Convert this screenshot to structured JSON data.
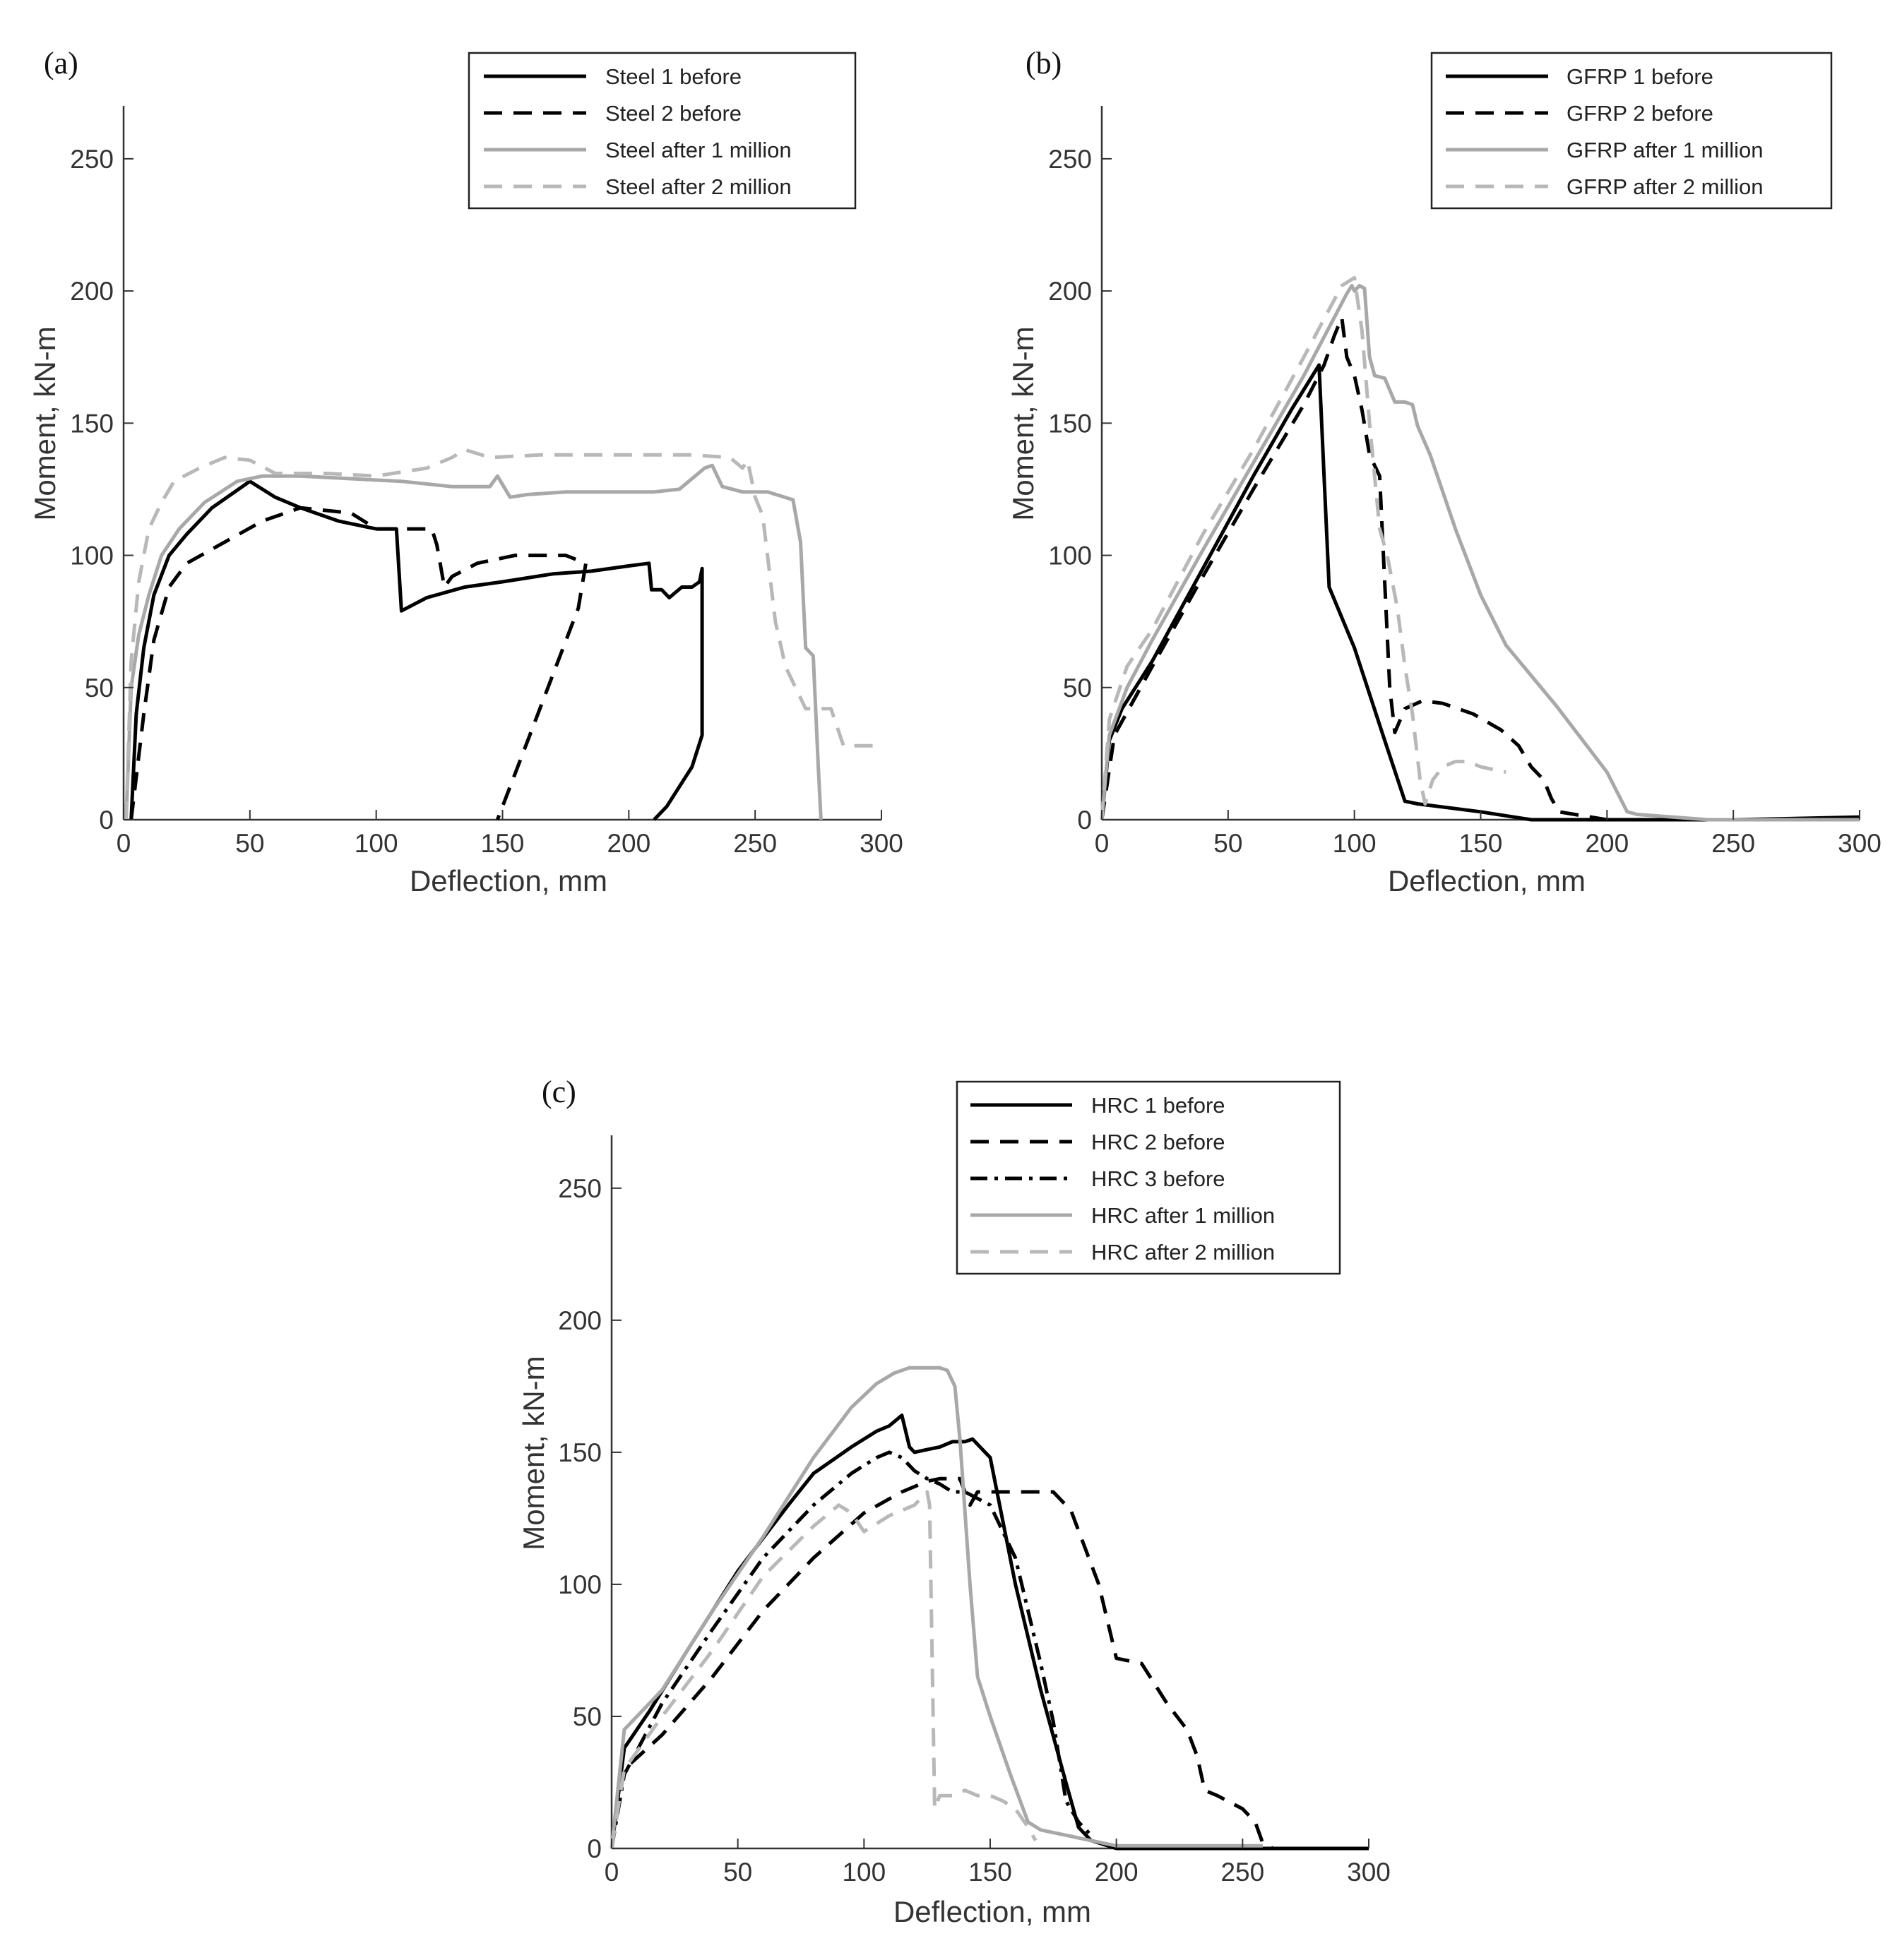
{
  "figure": {
    "panels": [
      "a",
      "b",
      "c"
    ]
  },
  "chart_data": [
    {
      "type": "line",
      "panel_label": "(a)",
      "xlabel": "Deflection, mm",
      "ylabel": "Moment, kN-m",
      "xlim": [
        0,
        300
      ],
      "ylim": [
        0,
        270
      ],
      "xticks": [
        0,
        50,
        100,
        150,
        200,
        250,
        300
      ],
      "yticks": [
        0,
        50,
        100,
        150,
        200,
        250
      ],
      "grid": false,
      "legend_position": "top-right",
      "series": [
        {
          "name": "Steel 1 before",
          "color": "#000000",
          "style": "solid",
          "x": [
            3,
            5,
            8,
            12,
            18,
            25,
            35,
            50,
            60,
            70,
            85,
            95,
            100,
            108,
            110,
            120,
            135,
            150,
            170,
            185,
            200,
            208,
            209,
            213,
            216,
            221,
            225,
            228,
            229,
            229,
            225,
            215,
            210
          ],
          "y": [
            0,
            40,
            65,
            85,
            100,
            108,
            118,
            128,
            122,
            118,
            113,
            111,
            110,
            110,
            79,
            84,
            88,
            90,
            93,
            94,
            96,
            97,
            87,
            87,
            84,
            88,
            88,
            90,
            95,
            32,
            20,
            5,
            0
          ]
        },
        {
          "name": "Steel 2 before",
          "color": "#000000",
          "style": "dashed",
          "x": [
            3,
            8,
            12,
            18,
            25,
            40,
            55,
            70,
            90,
            100,
            110,
            122,
            124,
            127,
            130,
            140,
            155,
            170,
            175,
            183,
            180,
            170,
            160,
            148
          ],
          "y": [
            0,
            40,
            68,
            88,
            97,
            105,
            113,
            118,
            116,
            110,
            110,
            110,
            104,
            88,
            92,
            97,
            100,
            100,
            100,
            97,
            80,
            55,
            30,
            0
          ]
        },
        {
          "name": "Steel after 1 million",
          "color": "#a8a8a8",
          "style": "solid",
          "x": [
            1,
            3,
            6,
            10,
            15,
            22,
            32,
            45,
            55,
            70,
            90,
            110,
            130,
            145,
            148,
            153,
            160,
            175,
            200,
            210,
            220,
            230,
            233,
            237,
            245,
            255,
            265,
            268,
            270,
            273,
            275,
            276,
            276
          ],
          "y": [
            0,
            50,
            70,
            85,
            100,
            110,
            120,
            128,
            130,
            130,
            129,
            128,
            126,
            126,
            130,
            122,
            123,
            124,
            124,
            124,
            125,
            133,
            134,
            126,
            124,
            124,
            121,
            105,
            65,
            62,
            20,
            1,
            0
          ]
        },
        {
          "name": "Steel after 2 million",
          "color": "#b8b8b8",
          "style": "dashed",
          "x": [
            1,
            3,
            6,
            10,
            15,
            20,
            30,
            40,
            50,
            60,
            80,
            100,
            120,
            130,
            135,
            145,
            165,
            200,
            225,
            240,
            245,
            247,
            250,
            253,
            258,
            262,
            265,
            270,
            280,
            285,
            290,
            300
          ],
          "y": [
            0,
            60,
            90,
            110,
            120,
            128,
            133,
            137,
            136,
            131,
            131,
            130,
            133,
            137,
            140,
            137,
            138,
            138,
            138,
            137,
            133,
            136,
            122,
            115,
            75,
            58,
            52,
            42,
            42,
            28,
            28,
            28
          ]
        }
      ]
    },
    {
      "type": "line",
      "panel_label": "(b)",
      "xlabel": "Deflection, mm",
      "ylabel": "Moment, kN-m",
      "xlim": [
        0,
        300
      ],
      "ylim": [
        0,
        270
      ],
      "xticks": [
        0,
        50,
        100,
        150,
        200,
        250,
        300
      ],
      "yticks": [
        0,
        50,
        100,
        150,
        200,
        250
      ],
      "grid": false,
      "legend_position": "top-right",
      "series": [
        {
          "name": "GFRP 1 before",
          "color": "#000000",
          "style": "solid",
          "x": [
            0,
            3,
            8,
            20,
            40,
            60,
            75,
            86,
            88,
            90,
            100,
            112,
            120,
            125,
            150,
            170,
            200,
            250,
            300
          ],
          "y": [
            0,
            30,
            42,
            60,
            95,
            130,
            155,
            172,
            130,
            88,
            65,
            30,
            7,
            6,
            3,
            0,
            0,
            0,
            1
          ]
        },
        {
          "name": "GFRP 2 before",
          "color": "#000000",
          "style": "dashed",
          "x": [
            0,
            5,
            20,
            40,
            60,
            80,
            88,
            92,
            95,
            97,
            100,
            103,
            106,
            110,
            114,
            116,
            120,
            127,
            135,
            147,
            158,
            165,
            170,
            175,
            178,
            181,
            200,
            250,
            300
          ],
          "y": [
            0,
            32,
            58,
            92,
            125,
            157,
            172,
            183,
            190,
            175,
            168,
            155,
            138,
            130,
            50,
            33,
            42,
            45,
            44,
            40,
            34,
            28,
            20,
            15,
            8,
            3,
            0,
            0,
            0
          ]
        },
        {
          "name": "GFRP after 1 million",
          "color": "#a8a8a8",
          "style": "solid",
          "x": [
            0,
            3,
            10,
            20,
            30,
            40,
            60,
            80,
            97,
            99,
            100,
            102,
            104,
            106,
            108,
            112,
            116,
            120,
            123,
            125,
            130,
            140,
            150,
            160,
            180,
            200,
            208,
            212,
            240,
            300
          ],
          "y": [
            0,
            32,
            50,
            68,
            85,
            102,
            135,
            168,
            199,
            202,
            200,
            202,
            201,
            175,
            168,
            167,
            158,
            158,
            157,
            149,
            138,
            110,
            85,
            66,
            43,
            18,
            3,
            2,
            0,
            0
          ]
        },
        {
          "name": "GFRP after 2 million",
          "color": "#b8b8b8",
          "style": "dashed",
          "x": [
            0,
            3,
            10,
            20,
            40,
            60,
            80,
            95,
            100,
            103,
            106,
            110,
            113,
            117,
            120,
            123,
            126,
            128,
            131,
            135,
            140,
            145,
            150,
            160
          ],
          "y": [
            0,
            38,
            58,
            72,
            108,
            140,
            175,
            202,
            205,
            185,
            150,
            110,
            100,
            80,
            58,
            40,
            15,
            6,
            15,
            20,
            22,
            22,
            20,
            18
          ]
        }
      ]
    },
    {
      "type": "line",
      "panel_label": "(c)",
      "xlabel": "Deflection, mm",
      "ylabel": "Moment, kN-m",
      "xlim": [
        0,
        300
      ],
      "ylim": [
        0,
        270
      ],
      "xticks": [
        0,
        50,
        100,
        150,
        200,
        250,
        300
      ],
      "yticks": [
        0,
        50,
        100,
        150,
        200,
        250
      ],
      "grid": false,
      "legend_position": "top-right",
      "series": [
        {
          "name": "HRC 1 before",
          "color": "#000000",
          "style": "solid",
          "x": [
            0,
            5,
            15,
            30,
            50,
            70,
            80,
            95,
            105,
            110,
            115,
            118,
            120,
            125,
            130,
            135,
            140,
            143,
            150,
            160,
            170,
            180,
            185,
            190,
            200,
            260,
            300
          ],
          "y": [
            0,
            38,
            52,
            75,
            105,
            130,
            142,
            152,
            158,
            160,
            164,
            152,
            150,
            151,
            152,
            154,
            154,
            155,
            148,
            100,
            60,
            25,
            8,
            3,
            0,
            0,
            0
          ]
        },
        {
          "name": "HRC 2 before",
          "color": "#000000",
          "style": "dashed",
          "x": [
            0,
            5,
            20,
            40,
            60,
            80,
            100,
            115,
            125,
            130,
            138,
            142,
            145,
            150,
            160,
            170,
            175,
            182,
            193,
            200,
            210,
            220,
            228,
            232,
            235,
            240,
            250,
            255,
            258,
            262,
            300
          ],
          "y": [
            0,
            30,
            43,
            65,
            90,
            110,
            127,
            135,
            139,
            140,
            140,
            130,
            135,
            135,
            135,
            135,
            135,
            128,
            100,
            72,
            70,
            55,
            45,
            35,
            22,
            20,
            15,
            10,
            2,
            0,
            0
          ]
        },
        {
          "name": "HRC 3 before",
          "color": "#000000",
          "style": "dashdot",
          "x": [
            0,
            5,
            20,
            40,
            60,
            80,
            95,
            100,
            105,
            110,
            115,
            120,
            125,
            130,
            135,
            140,
            150,
            160,
            170,
            175,
            178,
            180,
            185,
            190
          ],
          "y": [
            0,
            28,
            55,
            83,
            110,
            130,
            142,
            145,
            148,
            150,
            148,
            143,
            140,
            138,
            135,
            135,
            130,
            110,
            70,
            48,
            30,
            18,
            10,
            5
          ]
        },
        {
          "name": "HRC after 1 million",
          "color": "#a8a8a8",
          "style": "solid",
          "x": [
            0,
            5,
            20,
            40,
            60,
            80,
            95,
            105,
            112,
            118,
            125,
            130,
            133,
            136,
            138,
            142,
            145,
            150,
            158,
            165,
            170,
            200,
            258
          ],
          "y": [
            0,
            45,
            60,
            90,
            118,
            148,
            167,
            176,
            180,
            182,
            182,
            182,
            181,
            175,
            155,
            100,
            65,
            50,
            28,
            10,
            7,
            1,
            1
          ]
        },
        {
          "name": "HRC after 2 million",
          "color": "#b8b8b8",
          "style": "dashed",
          "x": [
            0,
            5,
            20,
            40,
            60,
            80,
            90,
            95,
            100,
            110,
            120,
            125,
            126,
            128,
            130,
            135,
            140,
            145,
            150,
            155,
            160,
            165,
            168
          ],
          "y": [
            0,
            30,
            50,
            75,
            103,
            122,
            130,
            127,
            120,
            126,
            130,
            135,
            130,
            15,
            20,
            20,
            22,
            20,
            20,
            18,
            15,
            8,
            3
          ]
        }
      ]
    }
  ]
}
